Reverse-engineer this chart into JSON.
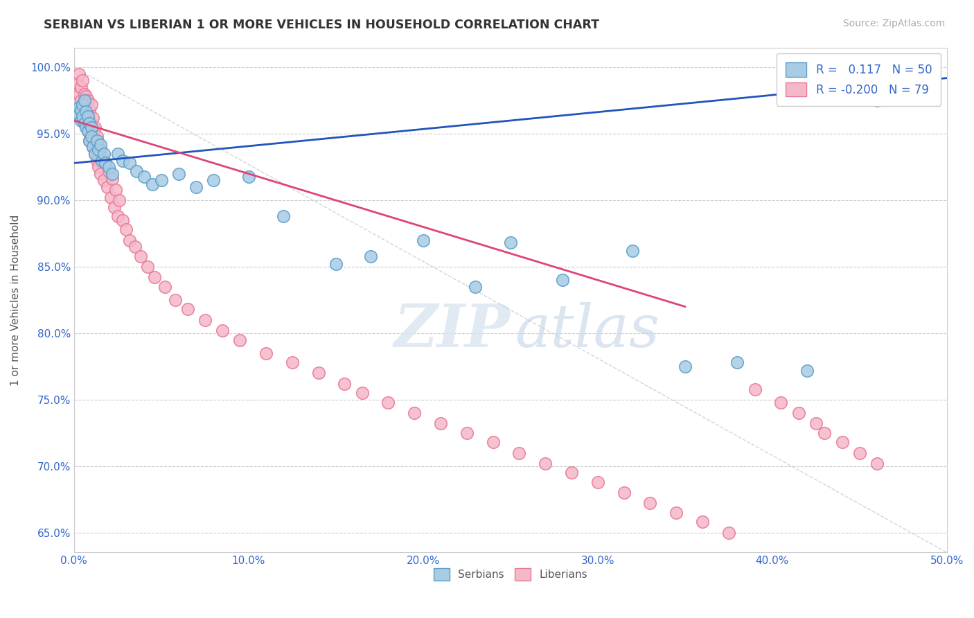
{
  "title": "SERBIAN VS LIBERIAN 1 OR MORE VEHICLES IN HOUSEHOLD CORRELATION CHART",
  "source": "Source: ZipAtlas.com",
  "ylabel": "1 or more Vehicles in Household",
  "xlim": [
    0.0,
    0.5
  ],
  "ylim": [
    0.635,
    1.015
  ],
  "xticks": [
    0.0,
    0.1,
    0.2,
    0.3,
    0.4,
    0.5
  ],
  "xticklabels": [
    "0.0%",
    "10.0%",
    "20.0%",
    "30.0%",
    "40.0%",
    "50.0%"
  ],
  "ytick_positions": [
    0.65,
    0.7,
    0.75,
    0.8,
    0.85,
    0.9,
    0.95,
    1.0
  ],
  "yticklabels": [
    "65.0%",
    "70.0%",
    "75.0%",
    "80.0%",
    "85.0%",
    "90.0%",
    "95.0%",
    "100.0%"
  ],
  "serbian_color": "#a8cce4",
  "liberian_color": "#f5b8c8",
  "serbian_edge": "#5a9ec9",
  "liberian_edge": "#e87898",
  "trend_blue": "#2255bb",
  "trend_pink": "#dd4477",
  "diag_color": "#c8c8d8",
  "R_serbian": 0.117,
  "N_serbian": 50,
  "R_liberian": -0.2,
  "N_liberian": 79,
  "serbian_x": [
    0.002,
    0.003,
    0.004,
    0.004,
    0.005,
    0.005,
    0.006,
    0.006,
    0.007,
    0.007,
    0.008,
    0.008,
    0.009,
    0.009,
    0.01,
    0.01,
    0.011,
    0.012,
    0.013,
    0.014,
    0.015,
    0.016,
    0.017,
    0.018,
    0.02,
    0.022,
    0.025,
    0.028,
    0.032,
    0.036,
    0.04,
    0.045,
    0.05,
    0.06,
    0.07,
    0.08,
    0.1,
    0.12,
    0.15,
    0.17,
    0.2,
    0.23,
    0.25,
    0.28,
    0.32,
    0.35,
    0.38,
    0.42,
    0.46,
    0.49
  ],
  "serbian_y": [
    0.965,
    0.97,
    0.96,
    0.968,
    0.972,
    0.963,
    0.975,
    0.958,
    0.967,
    0.955,
    0.963,
    0.952,
    0.958,
    0.945,
    0.955,
    0.948,
    0.94,
    0.935,
    0.945,
    0.938,
    0.942,
    0.93,
    0.935,
    0.928,
    0.925,
    0.92,
    0.935,
    0.93,
    0.928,
    0.922,
    0.918,
    0.912,
    0.915,
    0.92,
    0.91,
    0.915,
    0.918,
    0.888,
    0.852,
    0.858,
    0.87,
    0.835,
    0.868,
    0.84,
    0.862,
    0.775,
    0.778,
    0.772,
    0.975,
    0.99
  ],
  "liberian_x": [
    0.002,
    0.003,
    0.003,
    0.004,
    0.004,
    0.005,
    0.005,
    0.006,
    0.006,
    0.007,
    0.007,
    0.008,
    0.008,
    0.009,
    0.009,
    0.01,
    0.01,
    0.01,
    0.011,
    0.011,
    0.012,
    0.012,
    0.013,
    0.013,
    0.014,
    0.014,
    0.015,
    0.015,
    0.016,
    0.017,
    0.018,
    0.019,
    0.02,
    0.021,
    0.022,
    0.023,
    0.024,
    0.025,
    0.026,
    0.028,
    0.03,
    0.032,
    0.035,
    0.038,
    0.042,
    0.046,
    0.052,
    0.058,
    0.065,
    0.075,
    0.085,
    0.095,
    0.11,
    0.125,
    0.14,
    0.155,
    0.165,
    0.18,
    0.195,
    0.21,
    0.225,
    0.24,
    0.255,
    0.27,
    0.285,
    0.3,
    0.315,
    0.33,
    0.345,
    0.36,
    0.375,
    0.39,
    0.405,
    0.415,
    0.425,
    0.43,
    0.44,
    0.45,
    0.46
  ],
  "liberian_y": [
    0.988,
    0.995,
    0.98,
    0.985,
    0.975,
    0.99,
    0.972,
    0.98,
    0.965,
    0.978,
    0.96,
    0.975,
    0.952,
    0.968,
    0.945,
    0.972,
    0.958,
    0.948,
    0.962,
    0.94,
    0.955,
    0.935,
    0.948,
    0.93,
    0.942,
    0.925,
    0.938,
    0.92,
    0.932,
    0.915,
    0.928,
    0.91,
    0.922,
    0.902,
    0.916,
    0.895,
    0.908,
    0.888,
    0.9,
    0.885,
    0.878,
    0.87,
    0.865,
    0.858,
    0.85,
    0.842,
    0.835,
    0.825,
    0.818,
    0.81,
    0.802,
    0.795,
    0.785,
    0.778,
    0.77,
    0.762,
    0.755,
    0.748,
    0.74,
    0.732,
    0.725,
    0.718,
    0.71,
    0.702,
    0.695,
    0.688,
    0.68,
    0.672,
    0.665,
    0.658,
    0.65,
    0.758,
    0.748,
    0.74,
    0.732,
    0.725,
    0.718,
    0.71,
    0.702
  ],
  "watermark_zip": "ZIP",
  "watermark_atlas": "atlas",
  "figsize": [
    14.06,
    8.92
  ],
  "dpi": 100
}
